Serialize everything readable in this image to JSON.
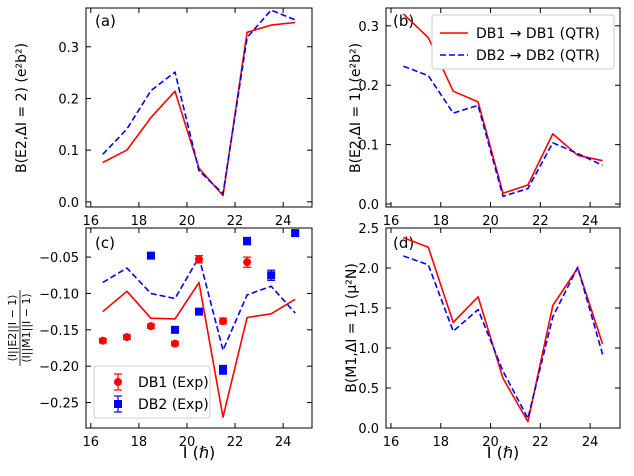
{
  "colors": {
    "db1": "#ff0000",
    "db2": "#0000ff",
    "axis": "#000000"
  },
  "xlabel": "I (ℏ)",
  "chart_data": [
    {
      "panel": "(a)",
      "type": "line",
      "ylabel": "B(E2,ΔI = 2) (e²b²)",
      "xlim": [
        15.8,
        25.2
      ],
      "ylim": [
        -0.01,
        0.375
      ],
      "xticks": [
        16,
        18,
        20,
        22,
        24
      ],
      "yticks": [
        0.0,
        0.1,
        0.2,
        0.3
      ],
      "ytick_labels": [
        "0.0",
        "0.1",
        "0.2",
        "0.3"
      ],
      "series": [
        {
          "name": "DB1 → DB1 (QTR)",
          "style": "solid",
          "color": "#ff0000",
          "x": [
            16.5,
            17.5,
            18.5,
            19.5,
            20.5,
            21.5,
            22.5,
            23.5,
            24.5
          ],
          "y": [
            0.076,
            0.1,
            0.163,
            0.214,
            0.065,
            0.012,
            0.328,
            0.342,
            0.347
          ]
        },
        {
          "name": "DB2 → DB2 (QTR)",
          "style": "dashed",
          "color": "#0000ff",
          "x": [
            16.5,
            17.5,
            18.5,
            19.5,
            20.5,
            21.5,
            22.5,
            23.5,
            24.5
          ],
          "y": [
            0.092,
            0.141,
            0.215,
            0.251,
            0.06,
            0.016,
            0.318,
            0.371,
            0.352
          ]
        }
      ]
    },
    {
      "panel": "(b)",
      "type": "line",
      "ylabel": "B(E2,ΔI = 1) (e²b²)",
      "xlim": [
        15.8,
        25.2
      ],
      "ylim": [
        -0.005,
        0.33
      ],
      "xticks": [
        16,
        18,
        20,
        22,
        24
      ],
      "yticks": [
        0.0,
        0.1,
        0.2,
        0.3
      ],
      "ytick_labels": [
        "0.0",
        "0.1",
        "0.2",
        "0.3"
      ],
      "legend": {
        "placement": "top-right",
        "entries": [
          "DB1 → DB1 (QTR)",
          "DB2 → DB2 (QTR)"
        ]
      },
      "series": [
        {
          "name": "DB1 → DB1 (QTR)",
          "style": "solid",
          "color": "#ff0000",
          "x": [
            16.5,
            17.5,
            18.5,
            19.5,
            20.5,
            21.5,
            22.5,
            23.5,
            24.5
          ],
          "y": [
            0.32,
            0.28,
            0.19,
            0.172,
            0.018,
            0.032,
            0.118,
            0.082,
            0.073
          ]
        },
        {
          "name": "DB2 → DB2 (QTR)",
          "style": "dashed",
          "color": "#0000ff",
          "x": [
            16.5,
            17.5,
            18.5,
            19.5,
            20.5,
            21.5,
            22.5,
            23.5,
            24.5
          ],
          "y": [
            0.232,
            0.216,
            0.153,
            0.166,
            0.013,
            0.026,
            0.103,
            0.085,
            0.065
          ]
        }
      ]
    },
    {
      "panel": "(c)",
      "type": "line+scatter",
      "ylabel_num": "⟨I||E2||I − 1⟩",
      "ylabel_den": "⟨I||M1||I − 1⟩",
      "xlim": [
        15.8,
        25.2
      ],
      "ylim": [
        -0.285,
        -0.01
      ],
      "xticks": [
        16,
        18,
        20,
        22,
        24
      ],
      "yticks": [
        -0.25,
        -0.2,
        -0.15,
        -0.1,
        -0.05
      ],
      "ytick_labels": [
        "−0.25",
        "−0.20",
        "−0.15",
        "−0.10",
        "−0.05"
      ],
      "legend": {
        "placement": "lower-left",
        "entries": [
          "DB1 (Exp)",
          "DB2 (Exp)"
        ]
      },
      "series": [
        {
          "name": "",
          "role": "DB1 QTR",
          "style": "solid",
          "color": "#ff0000",
          "x": [
            16.5,
            17.5,
            18.5,
            19.5,
            20.5,
            21.5,
            22.5,
            23.5,
            24.5
          ],
          "y": [
            -0.125,
            -0.097,
            -0.134,
            -0.135,
            -0.085,
            -0.27,
            -0.133,
            -0.128,
            -0.108
          ]
        },
        {
          "name": "",
          "role": "DB2 QTR",
          "style": "dashed",
          "color": "#0000ff",
          "x": [
            16.5,
            17.5,
            18.5,
            19.5,
            20.5,
            21.5,
            22.5,
            23.5,
            24.5
          ],
          "y": [
            -0.085,
            -0.065,
            -0.1,
            -0.107,
            -0.05,
            -0.178,
            -0.102,
            -0.09,
            -0.127
          ]
        },
        {
          "name": "DB1 (Exp)",
          "style": "marker-circle",
          "color": "#ff0000",
          "x": [
            16.5,
            17.5,
            18.5,
            19.5,
            20.5,
            21.5,
            22.5
          ],
          "y": [
            -0.165,
            -0.16,
            -0.145,
            -0.169,
            -0.053,
            -0.138,
            -0.057
          ],
          "err": [
            0.003,
            0.003,
            0.003,
            0.003,
            0.005,
            0.004,
            0.007
          ]
        },
        {
          "name": "DB2 (Exp)",
          "style": "marker-square",
          "color": "#0000ff",
          "x": [
            18.5,
            19.5,
            20.5,
            21.5,
            22.5,
            23.5,
            24.5
          ],
          "y": [
            -0.048,
            -0.15,
            -0.125,
            -0.205,
            -0.028,
            -0.075,
            -0.017
          ],
          "err": [
            0.003,
            0.004,
            0.004,
            0.006,
            0.005,
            0.007,
            0.003
          ]
        }
      ]
    },
    {
      "panel": "(d)",
      "type": "line",
      "ylabel": "B(M1,ΔI = 1) (μ²N)",
      "xlim": [
        15.8,
        25.2
      ],
      "ylim": [
        0.0,
        2.5
      ],
      "xticks": [
        16,
        18,
        20,
        22,
        24
      ],
      "yticks": [
        0.0,
        0.5,
        1.0,
        1.5,
        2.0,
        2.5
      ],
      "ytick_labels": [
        "0.0",
        "0.5",
        "1.0",
        "1.5",
        "2.0",
        "2.5"
      ],
      "series": [
        {
          "name": "DB1 → DB1 (QTR)",
          "style": "solid",
          "color": "#ff0000",
          "x": [
            16.5,
            17.5,
            18.5,
            19.5,
            20.5,
            21.5,
            22.5,
            23.5,
            24.5
          ],
          "y": [
            2.38,
            2.26,
            1.32,
            1.64,
            0.62,
            0.08,
            1.53,
            2.0,
            1.05
          ]
        },
        {
          "name": "DB2 → DB2 (QTR)",
          "style": "dashed",
          "color": "#0000ff",
          "x": [
            16.5,
            17.5,
            18.5,
            19.5,
            20.5,
            21.5,
            22.5,
            23.5,
            24.5
          ],
          "y": [
            2.15,
            2.04,
            1.21,
            1.48,
            0.71,
            0.12,
            1.39,
            2.01,
            0.92
          ]
        }
      ]
    }
  ]
}
